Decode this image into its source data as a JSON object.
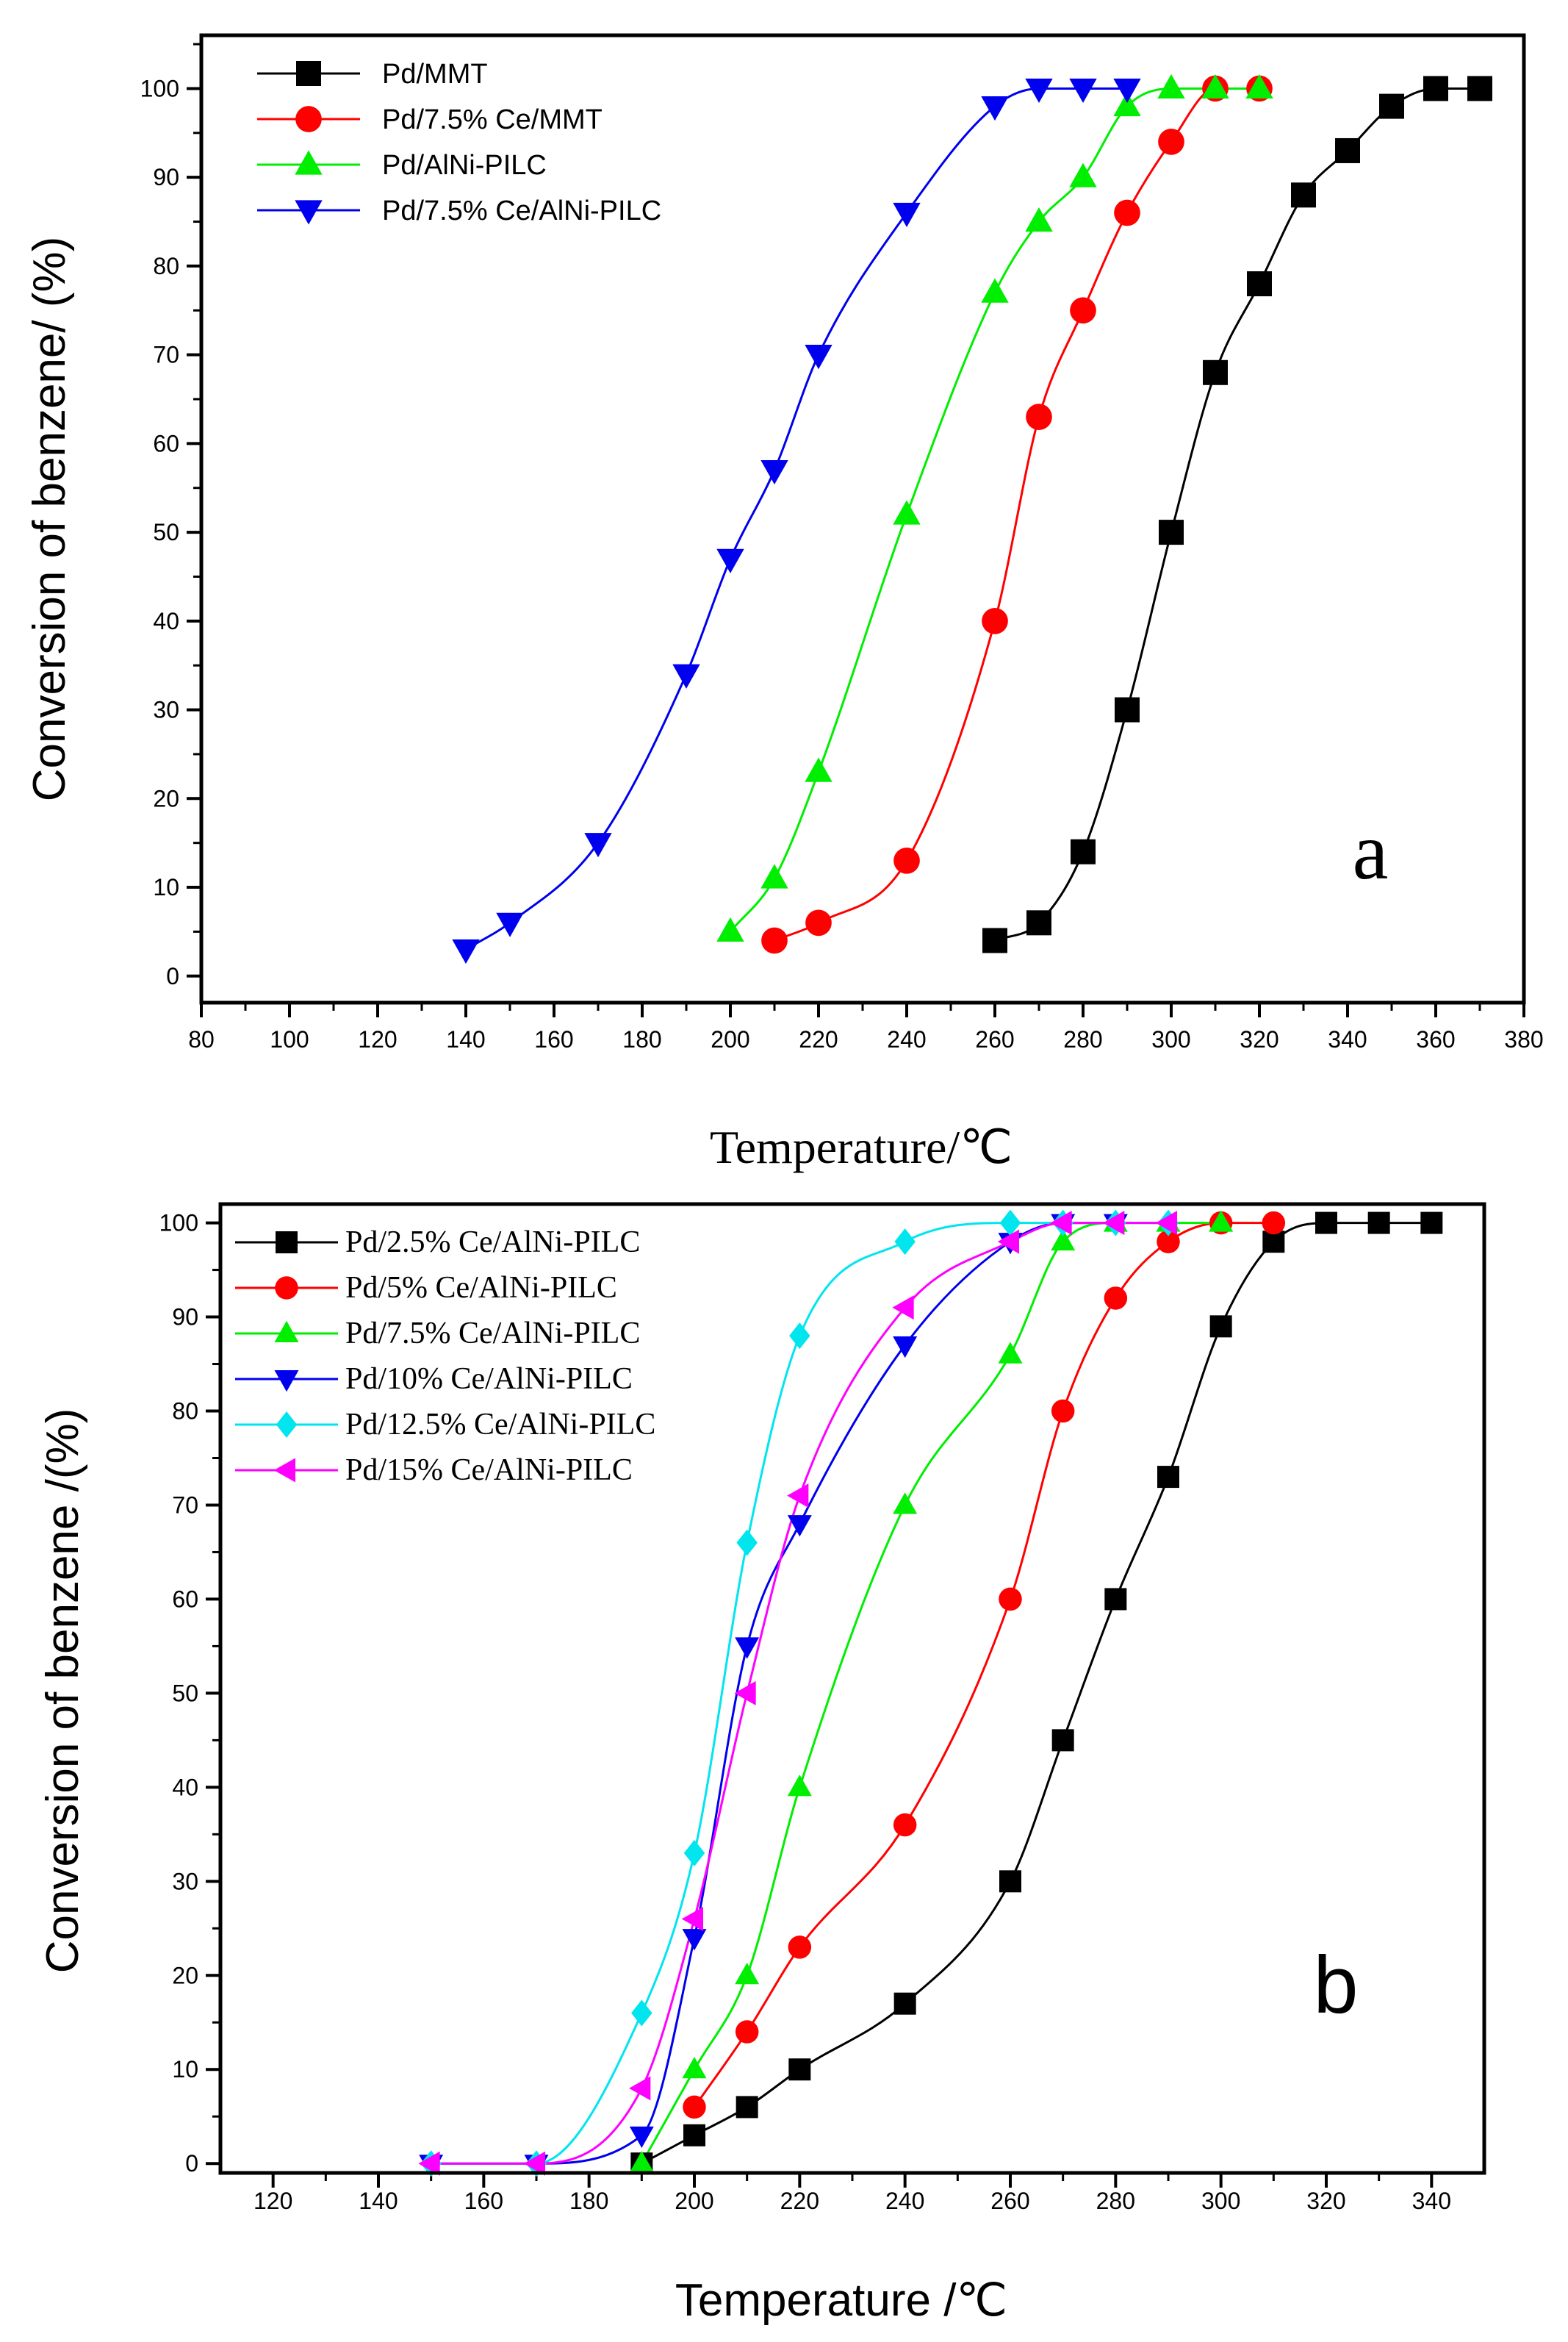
{
  "chart_data": [
    {
      "type": "line",
      "panel_label": "a",
      "xlabel": "Temperature/℃",
      "ylabel": "Conversion of benzene/ (%)",
      "xlim": [
        80,
        380
      ],
      "ylim": [
        -3,
        106
      ],
      "xticks": [
        80,
        100,
        120,
        140,
        160,
        180,
        200,
        220,
        240,
        260,
        280,
        300,
        320,
        340,
        360,
        380
      ],
      "yticks": [
        0,
        10,
        20,
        30,
        40,
        50,
        60,
        70,
        80,
        90,
        100
      ],
      "legend_position": "top-left",
      "series": [
        {
          "name": "Pd/MMT",
          "color": "#000000",
          "marker": "square",
          "x": [
            260,
            270,
            280,
            290,
            300,
            310,
            320,
            330,
            340,
            350,
            360,
            370
          ],
          "y": [
            4,
            6,
            14,
            30,
            50,
            68,
            78,
            88,
            93,
            98,
            100,
            100
          ]
        },
        {
          "name": "Pd/7.5% Ce/MMT",
          "color": "#ff0000",
          "marker": "circle",
          "x": [
            210,
            220,
            240,
            260,
            270,
            280,
            290,
            300,
            310,
            320
          ],
          "y": [
            4,
            6,
            13,
            40,
            63,
            75,
            86,
            94,
            100,
            100
          ]
        },
        {
          "name": "Pd/AlNi-PILC",
          "color": "#00ee00",
          "marker": "triangle-up",
          "x": [
            200,
            210,
            220,
            240,
            260,
            270,
            280,
            290,
            300,
            310,
            320
          ],
          "y": [
            5,
            11,
            23,
            52,
            77,
            85,
            90,
            98,
            100,
            100,
            100
          ]
        },
        {
          "name": "Pd/7.5% Ce/AlNi-PILC",
          "color": "#0000ee",
          "marker": "triangle-down",
          "x": [
            140,
            150,
            170,
            190,
            200,
            210,
            220,
            240,
            260,
            270,
            280,
            290
          ],
          "y": [
            3,
            6,
            15,
            34,
            47,
            57,
            70,
            86,
            98,
            100,
            100,
            100
          ]
        }
      ]
    },
    {
      "type": "line",
      "panel_label": "b",
      "xlabel": "Temperature /℃",
      "ylabel": "Conversion of benzene /(%)",
      "xlim": [
        110,
        350
      ],
      "ylim": [
        -1,
        102
      ],
      "xticks": [
        120,
        140,
        160,
        180,
        200,
        220,
        240,
        260,
        280,
        300,
        320,
        340
      ],
      "yticks": [
        0,
        10,
        20,
        30,
        40,
        50,
        60,
        70,
        80,
        90,
        100
      ],
      "legend_position": "top-left",
      "series": [
        {
          "name": "Pd/2.5% Ce/AlNi-PILC",
          "color": "#000000",
          "marker": "square",
          "x": [
            190,
            200,
            210,
            220,
            240,
            260,
            270,
            280,
            290,
            300,
            310,
            320,
            330,
            340
          ],
          "y": [
            0,
            3,
            6,
            10,
            17,
            30,
            45,
            60,
            73,
            89,
            98,
            100,
            100,
            100
          ]
        },
        {
          "name": "Pd/5% Ce/AlNi-PILC",
          "color": "#ff0000",
          "marker": "circle",
          "x": [
            200,
            210,
            220,
            240,
            260,
            270,
            280,
            290,
            300,
            310
          ],
          "y": [
            6,
            14,
            23,
            36,
            60,
            80,
            92,
            98,
            100,
            100
          ]
        },
        {
          "name": "Pd/7.5% Ce/AlNi-PILC",
          "color": "#00ee00",
          "marker": "triangle-up",
          "x": [
            190,
            200,
            210,
            220,
            240,
            260,
            270,
            280,
            290,
            300
          ],
          "y": [
            0,
            10,
            20,
            40,
            70,
            86,
            98,
            100,
            100,
            100
          ]
        },
        {
          "name": "Pd/10% Ce/AlNi-PILC",
          "color": "#0000ee",
          "marker": "triangle-down",
          "x": [
            150,
            170,
            190,
            200,
            210,
            220,
            240,
            260,
            270,
            280
          ],
          "y": [
            0,
            0,
            3,
            24,
            55,
            68,
            87,
            98,
            100,
            100
          ]
        },
        {
          "name": "Pd/12.5% Ce/AlNi-PILC",
          "color": "#00e5ee",
          "marker": "diamond",
          "x": [
            150,
            170,
            190,
            200,
            210,
            220,
            240,
            260,
            270,
            280,
            290
          ],
          "y": [
            0,
            0,
            16,
            33,
            66,
            88,
            98,
            100,
            100,
            100,
            100
          ]
        },
        {
          "name": "Pd/15% Ce/AlNi-PILC",
          "color": "#ff00ff",
          "marker": "triangle-left",
          "x": [
            150,
            170,
            190,
            200,
            210,
            220,
            240,
            260,
            270,
            280,
            290
          ],
          "y": [
            0,
            0,
            8,
            26,
            50,
            71,
            91,
            98,
            100,
            100,
            100
          ]
        }
      ]
    }
  ]
}
